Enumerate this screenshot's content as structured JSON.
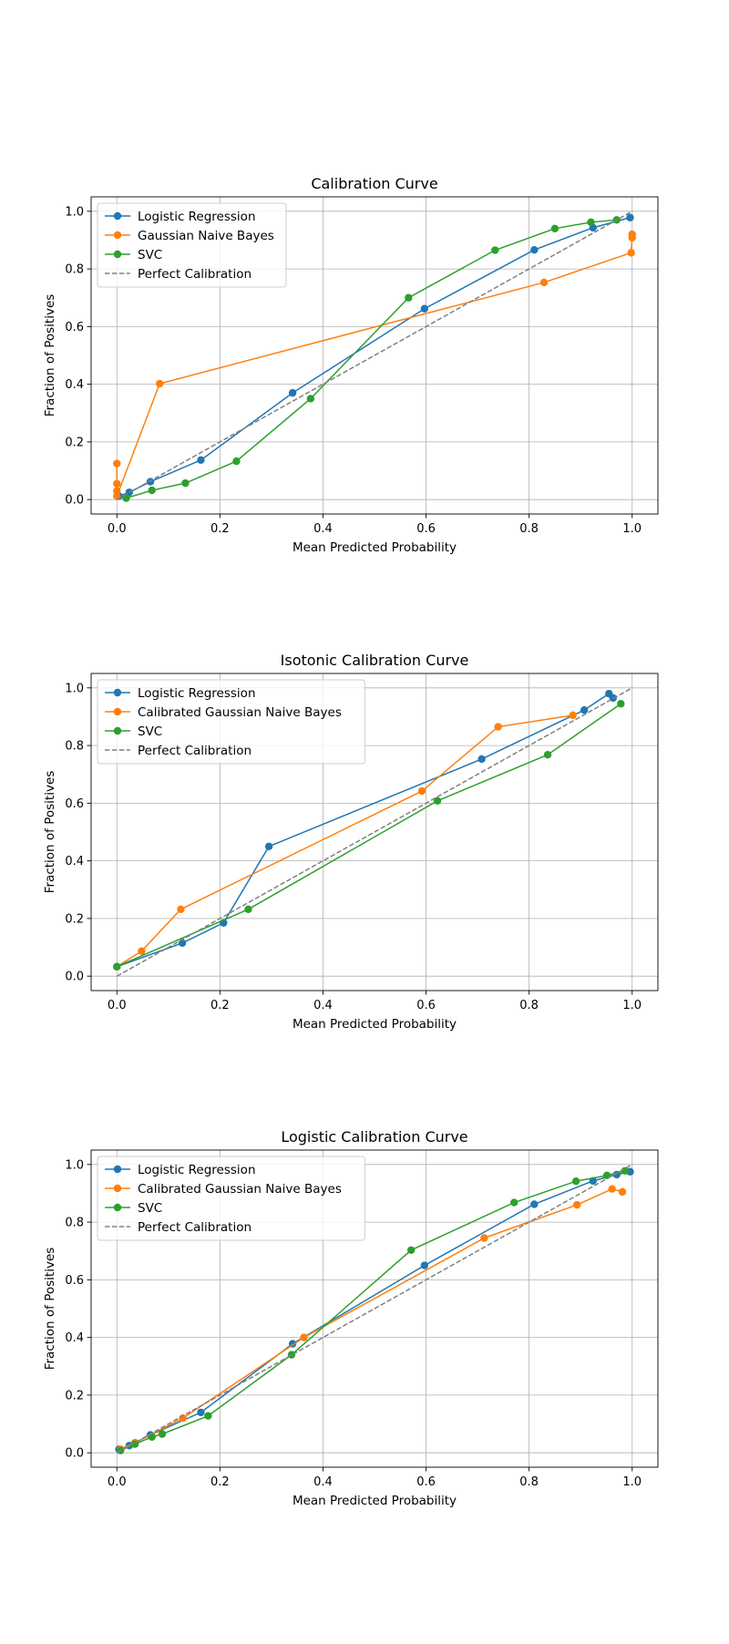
{
  "chart_data": [
    {
      "type": "line",
      "title": "Calibration Curve",
      "xlabel": "Mean Predicted Probability",
      "ylabel": "Fraction of Positives",
      "xlim": [
        -0.05,
        1.05
      ],
      "ylim": [
        -0.05,
        1.05
      ],
      "xticks": [
        "0.0",
        "0.2",
        "0.4",
        "0.6",
        "0.8",
        "1.0"
      ],
      "yticks": [
        "0.0",
        "0.2",
        "0.4",
        "0.6",
        "0.8",
        "1.0"
      ],
      "grid": true,
      "legend_position": "upper-left",
      "series": [
        {
          "name": "Logistic Regression",
          "color": "#1f77b4",
          "marker": true,
          "x": [
            0.004,
            0.024,
            0.065,
            0.163,
            0.341,
            0.597,
            0.81,
            0.924,
            0.996
          ],
          "y": [
            0.012,
            0.025,
            0.062,
            0.137,
            0.37,
            0.662,
            0.866,
            0.943,
            0.978
          ]
        },
        {
          "name": "Gaussian Naive Bayes",
          "color": "#ff7f0e",
          "marker": true,
          "x": [
            0.0,
            0.0,
            0.0,
            0.0,
            0.083,
            0.829,
            0.998,
            1.0,
            1.0
          ],
          "y": [
            0.125,
            0.055,
            0.03,
            0.012,
            0.402,
            0.753,
            0.856,
            0.908,
            0.92
          ]
        },
        {
          "name": "SVC",
          "color": "#2ca02c",
          "marker": true,
          "x": [
            0.018,
            0.068,
            0.133,
            0.232,
            0.376,
            0.566,
            0.734,
            0.85,
            0.92,
            0.97
          ],
          "y": [
            0.005,
            0.032,
            0.057,
            0.133,
            0.35,
            0.7,
            0.865,
            0.94,
            0.962,
            0.97
          ]
        },
        {
          "name": "Perfect Calibration",
          "color": "#808080",
          "dashed": true,
          "marker": false,
          "x": [
            0,
            1
          ],
          "y": [
            0,
            1
          ]
        }
      ]
    },
    {
      "type": "line",
      "title": "Isotonic Calibration Curve",
      "xlabel": "Mean Predicted Probability",
      "ylabel": "Fraction of Positives",
      "xlim": [
        -0.05,
        1.05
      ],
      "ylim": [
        -0.05,
        1.05
      ],
      "xticks": [
        "0.0",
        "0.2",
        "0.4",
        "0.6",
        "0.8",
        "1.0"
      ],
      "yticks": [
        "0.0",
        "0.2",
        "0.4",
        "0.6",
        "0.8",
        "1.0"
      ],
      "grid": true,
      "legend_position": "upper-left",
      "series": [
        {
          "name": "Logistic Regression",
          "color": "#1f77b4",
          "marker": true,
          "x": [
            0.0,
            0.127,
            0.207,
            0.295,
            0.708,
            0.907,
            0.955,
            0.963
          ],
          "y": [
            0.033,
            0.115,
            0.185,
            0.45,
            0.753,
            0.923,
            0.98,
            0.965
          ]
        },
        {
          "name": "Calibrated Gaussian Naive Bayes",
          "color": "#ff7f0e",
          "marker": true,
          "x": [
            0.0,
            0.048,
            0.124,
            0.592,
            0.74,
            0.885
          ],
          "y": [
            0.033,
            0.087,
            0.232,
            0.642,
            0.865,
            0.905
          ]
        },
        {
          "name": "SVC",
          "color": "#2ca02c",
          "marker": true,
          "x": [
            0.0,
            0.255,
            0.622,
            0.836,
            0.978
          ],
          "y": [
            0.033,
            0.232,
            0.608,
            0.768,
            0.945
          ]
        },
        {
          "name": "Perfect Calibration",
          "color": "#808080",
          "dashed": true,
          "marker": false,
          "x": [
            0,
            1
          ],
          "y": [
            0,
            1
          ]
        }
      ]
    },
    {
      "type": "line",
      "title": "Logistic Calibration Curve",
      "xlabel": "Mean Predicted Probability",
      "ylabel": "Fraction of Positives",
      "xlim": [
        -0.05,
        1.05
      ],
      "ylim": [
        -0.05,
        1.05
      ],
      "xticks": [
        "0.0",
        "0.2",
        "0.4",
        "0.6",
        "0.8",
        "1.0"
      ],
      "yticks": [
        "0.0",
        "0.2",
        "0.4",
        "0.6",
        "0.8",
        "1.0"
      ],
      "grid": true,
      "legend_position": "upper-left",
      "series": [
        {
          "name": "Logistic Regression",
          "color": "#1f77b4",
          "marker": true,
          "x": [
            0.004,
            0.024,
            0.065,
            0.163,
            0.341,
            0.597,
            0.81,
            0.924,
            0.97,
            0.996
          ],
          "y": [
            0.012,
            0.025,
            0.062,
            0.14,
            0.378,
            0.65,
            0.862,
            0.943,
            0.965,
            0.975
          ]
        },
        {
          "name": "Calibrated Gaussian Naive Bayes",
          "color": "#ff7f0e",
          "marker": true,
          "x": [
            0.007,
            0.035,
            0.128,
            0.363,
            0.713,
            0.893,
            0.961,
            0.981
          ],
          "y": [
            0.012,
            0.035,
            0.12,
            0.4,
            0.745,
            0.86,
            0.915,
            0.905
          ]
        },
        {
          "name": "SVC",
          "color": "#2ca02c",
          "marker": true,
          "x": [
            0.007,
            0.035,
            0.068,
            0.088,
            0.177,
            0.339,
            0.571,
            0.771,
            0.891,
            0.951,
            0.986
          ],
          "y": [
            0.008,
            0.03,
            0.055,
            0.065,
            0.128,
            0.34,
            0.703,
            0.868,
            0.942,
            0.962,
            0.978
          ]
        },
        {
          "name": "Perfect Calibration",
          "color": "#808080",
          "dashed": true,
          "marker": false,
          "x": [
            0,
            1
          ],
          "y": [
            0,
            1
          ]
        }
      ]
    }
  ]
}
